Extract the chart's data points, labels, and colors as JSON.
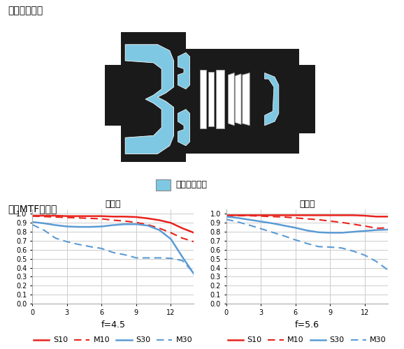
{
  "title_lens": "镜头结构图：",
  "title_mtf": "镜头MTF曲线：",
  "legend_label": "非球面镜片组",
  "wide_title": "广角端",
  "tele_title": "望远端",
  "wide_f": "f=4.5",
  "tele_f": "f=5.6",
  "x_ticks": [
    0,
    3,
    6,
    9,
    12
  ],
  "x_max": 14,
  "y_ticks": [
    0,
    0.1,
    0.2,
    0.3,
    0.4,
    0.5,
    0.6,
    0.7,
    0.8,
    0.9,
    1
  ],
  "wide_S10": [
    [
      0,
      0.98
    ],
    [
      1,
      0.98
    ],
    [
      2,
      0.98
    ],
    [
      3,
      0.975
    ],
    [
      4,
      0.975
    ],
    [
      5,
      0.975
    ],
    [
      6,
      0.975
    ],
    [
      7,
      0.97
    ],
    [
      8,
      0.97
    ],
    [
      9,
      0.965
    ],
    [
      10,
      0.95
    ],
    [
      11,
      0.93
    ],
    [
      12,
      0.9
    ],
    [
      13,
      0.84
    ],
    [
      14,
      0.79
    ]
  ],
  "wide_M10": [
    [
      0,
      0.975
    ],
    [
      1,
      0.97
    ],
    [
      2,
      0.965
    ],
    [
      3,
      0.96
    ],
    [
      4,
      0.955
    ],
    [
      5,
      0.95
    ],
    [
      6,
      0.945
    ],
    [
      7,
      0.93
    ],
    [
      8,
      0.92
    ],
    [
      9,
      0.905
    ],
    [
      10,
      0.88
    ],
    [
      11,
      0.84
    ],
    [
      12,
      0.79
    ],
    [
      13,
      0.73
    ],
    [
      14,
      0.69
    ]
  ],
  "wide_S30": [
    [
      0,
      0.91
    ],
    [
      1,
      0.895
    ],
    [
      2,
      0.875
    ],
    [
      3,
      0.86
    ],
    [
      4,
      0.855
    ],
    [
      5,
      0.855
    ],
    [
      6,
      0.86
    ],
    [
      7,
      0.875
    ],
    [
      8,
      0.885
    ],
    [
      9,
      0.885
    ],
    [
      10,
      0.87
    ],
    [
      11,
      0.82
    ],
    [
      12,
      0.72
    ],
    [
      13,
      0.52
    ],
    [
      14,
      0.33
    ]
  ],
  "wide_M30": [
    [
      0,
      0.88
    ],
    [
      1,
      0.82
    ],
    [
      2,
      0.73
    ],
    [
      3,
      0.69
    ],
    [
      4,
      0.66
    ],
    [
      5,
      0.635
    ],
    [
      6,
      0.615
    ],
    [
      7,
      0.57
    ],
    [
      8,
      0.545
    ],
    [
      9,
      0.51
    ],
    [
      10,
      0.51
    ],
    [
      11,
      0.51
    ],
    [
      12,
      0.505
    ],
    [
      13,
      0.48
    ],
    [
      14,
      0.34
    ]
  ],
  "tele_S10": [
    [
      0,
      0.985
    ],
    [
      1,
      0.985
    ],
    [
      2,
      0.985
    ],
    [
      3,
      0.985
    ],
    [
      4,
      0.985
    ],
    [
      5,
      0.985
    ],
    [
      6,
      0.985
    ],
    [
      7,
      0.985
    ],
    [
      8,
      0.985
    ],
    [
      9,
      0.985
    ],
    [
      10,
      0.985
    ],
    [
      11,
      0.985
    ],
    [
      12,
      0.98
    ],
    [
      13,
      0.97
    ],
    [
      14,
      0.97
    ]
  ],
  "tele_M10": [
    [
      0,
      0.98
    ],
    [
      1,
      0.98
    ],
    [
      2,
      0.98
    ],
    [
      3,
      0.975
    ],
    [
      4,
      0.97
    ],
    [
      5,
      0.965
    ],
    [
      6,
      0.955
    ],
    [
      7,
      0.945
    ],
    [
      8,
      0.935
    ],
    [
      9,
      0.92
    ],
    [
      10,
      0.905
    ],
    [
      11,
      0.885
    ],
    [
      12,
      0.865
    ],
    [
      13,
      0.84
    ],
    [
      14,
      0.845
    ]
  ],
  "tele_S30": [
    [
      0,
      0.97
    ],
    [
      1,
      0.955
    ],
    [
      2,
      0.935
    ],
    [
      3,
      0.915
    ],
    [
      4,
      0.895
    ],
    [
      5,
      0.87
    ],
    [
      6,
      0.845
    ],
    [
      7,
      0.815
    ],
    [
      8,
      0.795
    ],
    [
      9,
      0.79
    ],
    [
      10,
      0.79
    ],
    [
      11,
      0.8
    ],
    [
      12,
      0.81
    ],
    [
      13,
      0.82
    ],
    [
      14,
      0.825
    ]
  ],
  "tele_M30": [
    [
      0,
      0.94
    ],
    [
      1,
      0.91
    ],
    [
      2,
      0.875
    ],
    [
      3,
      0.835
    ],
    [
      4,
      0.795
    ],
    [
      5,
      0.755
    ],
    [
      6,
      0.71
    ],
    [
      7,
      0.67
    ],
    [
      8,
      0.635
    ],
    [
      9,
      0.63
    ],
    [
      10,
      0.62
    ],
    [
      11,
      0.585
    ],
    [
      12,
      0.54
    ],
    [
      13,
      0.47
    ],
    [
      14,
      0.375
    ]
  ],
  "color_red": "#e8231c",
  "color_blue": "#5b9bd5",
  "bg_color": "#ffffff",
  "grid_color": "#cccccc",
  "lens_color_black": "#1a1a1a",
  "lens_color_blue": "#7ec8e3"
}
